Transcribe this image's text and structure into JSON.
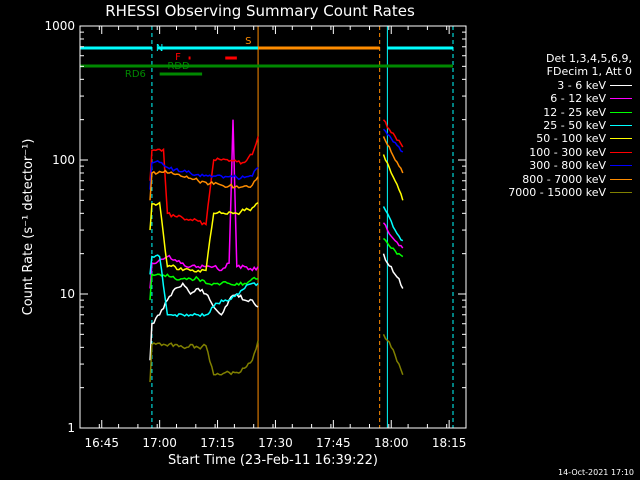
{
  "title": "RHESSI Observing Summary Count Rates",
  "footer_date": "14-Oct-2021 17:10",
  "legend": {
    "header_line1": "Det 1,3,4,5,6,9,",
    "header_line2": "FDecim 1, Att 0"
  },
  "flags": {
    "N": "N",
    "S": "S",
    "F": "F",
    "RDD": "RDD",
    "RD6": "RD6"
  },
  "chart_data": {
    "type": "line",
    "title": "RHESSI Observing Summary Count Rates",
    "xlabel": "Start Time (23-Feb-11 16:39:22)",
    "ylabel": "Count Rate (s⁻¹ detector⁻¹)",
    "yscale": "log",
    "ylim": [
      1,
      1000
    ],
    "xlim_minutes_after_start": [
      0,
      100
    ],
    "x_ticks": [
      "16:45",
      "17:00",
      "17:15",
      "17:30",
      "17:45",
      "18:00",
      "18:15"
    ],
    "y_ticks": [
      "1",
      "10",
      "100",
      "1000"
    ],
    "legend_position": "right",
    "series": [
      {
        "name": "3 - 6 keV",
        "color": "#ffffff",
        "segments": [
          {
            "x": [
              "16:57:30",
              "16:58:00",
              "17:00:00",
              "17:02:00",
              "17:04:00",
              "17:06:00",
              "17:08:00",
              "17:10:00",
              "17:12:00",
              "17:14:00",
              "17:16:00",
              "17:18:00",
              "17:20:00",
              "17:22:00",
              "17:24:00",
              "17:25:30"
            ],
            "y": [
              3.2,
              6,
              7,
              9,
              11,
              12,
              10,
              11,
              10,
              8,
              7,
              9,
              10,
              9,
              9,
              8
            ]
          },
          {
            "x": [
              "17:58:00",
              "17:59:00",
              "18:00:00",
              "18:01:00",
              "18:02:00",
              "18:03:00"
            ],
            "y": [
              20,
              17,
              16,
              14,
              13,
              11
            ]
          }
        ]
      },
      {
        "name": "6 - 12 keV",
        "color": "#ff00ff",
        "segments": [
          {
            "x": [
              "16:57:30",
              "16:58:00",
              "17:00:00",
              "17:02:00",
              "17:04:00",
              "17:06:00",
              "17:08:00",
              "17:10:00",
              "17:12:00",
              "17:14:00",
              "17:16:00",
              "17:18:00",
              "17:19:00",
              "17:20:00",
              "17:22:00",
              "17:24:00",
              "17:25:30"
            ],
            "y": [
              11,
              17,
              18,
              19,
              18,
              17,
              16,
              16,
              16,
              16,
              15,
              17,
              200,
              16,
              16,
              15,
              16
            ]
          },
          {
            "x": [
              "17:58:00",
              "17:59:00",
              "18:00:00",
              "18:01:00",
              "18:02:00",
              "18:03:00"
            ],
            "y": [
              34,
              30,
              27,
              25,
              23,
              22
            ]
          }
        ]
      },
      {
        "name": "12 - 25 keV",
        "color": "#00ff00",
        "segments": [
          {
            "x": [
              "16:57:30",
              "16:58:00",
              "17:00:00",
              "17:02:00",
              "17:04:00",
              "17:06:00",
              "17:08:00",
              "17:10:00",
              "17:12:00",
              "17:14:00",
              "17:16:00",
              "17:18:00",
              "17:20:00",
              "17:22:00",
              "17:24:00",
              "17:25:30"
            ],
            "y": [
              9,
              14,
              14,
              14,
              13,
              13,
              13,
              13,
              12,
              12,
              12,
              12,
              12,
              12,
              13,
              13
            ]
          },
          {
            "x": [
              "17:58:00",
              "17:59:00",
              "18:00:00",
              "18:01:00",
              "18:02:00",
              "18:03:00"
            ],
            "y": [
              26,
              24,
              22,
              21,
              20,
              19
            ]
          }
        ]
      },
      {
        "name": "25 - 50 keV",
        "color": "#00ffff",
        "segments": [
          {
            "x": [
              "16:57:30",
              "16:58:00",
              "17:00:00",
              "17:02:00",
              "17:04:00",
              "17:06:00",
              "17:08:00",
              "17:10:00",
              "17:12:00",
              "17:14:00",
              "17:16:00",
              "17:18:00",
              "17:20:00",
              "17:22:00",
              "17:24:00",
              "17:25:30"
            ],
            "y": [
              14,
              19,
              19,
              7,
              7,
              7,
              7,
              7,
              7,
              8,
              9,
              9,
              10,
              11,
              12,
              12
            ]
          },
          {
            "x": [
              "17:58:00",
              "17:59:00",
              "18:00:00",
              "18:01:00",
              "18:02:00",
              "18:03:00"
            ],
            "y": [
              45,
              40,
              35,
              30,
              27,
              25
            ]
          }
        ]
      },
      {
        "name": "50 - 100 keV",
        "color": "#ffff00",
        "segments": [
          {
            "x": [
              "16:57:30",
              "16:58:00",
              "17:00:00",
              "17:02:00",
              "17:04:00",
              "17:06:00",
              "17:08:00",
              "17:10:00",
              "17:12:00",
              "17:14:00",
              "17:16:00",
              "17:18:00",
              "17:20:00",
              "17:22:00",
              "17:24:00",
              "17:25:30"
            ],
            "y": [
              30,
              47,
              48,
              16,
              16,
              15,
              15,
              15,
              15,
              40,
              40,
              41,
              40,
              42,
              44,
              48
            ]
          },
          {
            "x": [
              "17:58:00",
              "17:59:00",
              "18:00:00",
              "18:01:00",
              "18:02:00",
              "18:03:00"
            ],
            "y": [
              110,
              95,
              80,
              70,
              60,
              50
            ]
          }
        ]
      },
      {
        "name": "100 - 300 keV",
        "color": "#ff0000",
        "segments": [
          {
            "x": [
              "16:57:30",
              "16:58:00",
              "17:00:00",
              "17:01:00",
              "17:02:00",
              "17:04:00",
              "17:06:00",
              "17:08:00",
              "17:10:00",
              "17:12:00",
              "17:14:00",
              "17:16:00",
              "17:18:00",
              "17:20:00",
              "17:22:00",
              "17:24:00",
              "17:25:30"
            ],
            "y": [
              70,
              118,
              120,
              120,
              40,
              38,
              37,
              36,
              35,
              33,
              100,
              100,
              98,
              97,
              96,
              110,
              150
            ]
          },
          {
            "x": [
              "17:58:00",
              "17:59:00",
              "18:00:00",
              "18:01:00",
              "18:02:00",
              "18:03:00"
            ],
            "y": [
              200,
              175,
              160,
              150,
              140,
              125
            ]
          }
        ]
      },
      {
        "name": "300 - 800 keV",
        "color": "#0000ff",
        "segments": [
          {
            "x": [
              "16:57:30",
              "16:58:00",
              "17:00:00",
              "17:02:00",
              "17:04:00",
              "17:06:00",
              "17:08:00",
              "17:10:00",
              "17:12:00",
              "17:14:00",
              "17:16:00",
              "17:18:00",
              "17:20:00",
              "17:22:00",
              "17:24:00",
              "17:25:30"
            ],
            "y": [
              60,
              95,
              96,
              88,
              85,
              82,
              80,
              78,
              77,
              76,
              76,
              75,
              74,
              74,
              76,
              88
            ]
          },
          {
            "x": [
              "17:58:00",
              "17:59:00",
              "18:00:00",
              "18:01:00",
              "18:02:00",
              "18:03:00"
            ],
            "y": [
              170,
              155,
              145,
              135,
              125,
              115
            ]
          }
        ]
      },
      {
        "name": "800 - 7000 keV",
        "color": "#ff8c00",
        "segments": [
          {
            "x": [
              "16:57:30",
              "16:58:00",
              "17:00:00",
              "17:02:00",
              "17:04:00",
              "17:06:00",
              "17:08:00",
              "17:10:00",
              "17:12:00",
              "17:14:00",
              "17:16:00",
              "17:18:00",
              "17:20:00",
              "17:22:00",
              "17:24:00",
              "17:25:30"
            ],
            "y": [
              50,
              80,
              82,
              80,
              78,
              75,
              73,
              70,
              68,
              66,
              65,
              64,
              64,
              64,
              65,
              75
            ]
          },
          {
            "x": [
              "17:58:00",
              "17:59:00",
              "18:00:00",
              "18:01:00",
              "18:02:00",
              "18:03:00"
            ],
            "y": [
              150,
              130,
              115,
              100,
              90,
              80
            ]
          }
        ]
      },
      {
        "name": "7000 - 15000 keV",
        "color": "#808000",
        "segments": [
          {
            "x": [
              "16:57:30",
              "16:58:00",
              "17:00:00",
              "17:02:00",
              "17:04:00",
              "17:06:00",
              "17:08:00",
              "17:10:00",
              "17:12:00",
              "17:14:00",
              "17:16:00",
              "17:18:00",
              "17:20:00",
              "17:22:00",
              "17:24:00",
              "17:25:30"
            ],
            "y": [
              2.2,
              4.2,
              4.3,
              4.1,
              4.2,
              4.0,
              4.2,
              4.0,
              4.1,
              2.5,
              2.5,
              2.6,
              2.6,
              2.8,
              3.2,
              4.5
            ]
          },
          {
            "x": [
              "17:58:00",
              "17:59:00",
              "18:00:00",
              "18:01:00",
              "18:02:00",
              "18:03:00"
            ],
            "y": [
              5,
              4.5,
              4,
              3.5,
              3,
              2.5
            ]
          }
        ]
      }
    ],
    "flag_intervals": [
      {
        "name": "N",
        "color": "#00ffff",
        "level": "top",
        "ranges": [
          [
            "16:39:22",
            "16:58:00"
          ],
          [
            "16:59:30",
            "17:25:30"
          ],
          [
            "17:59:00",
            "18:16:00"
          ]
        ]
      },
      {
        "name": "S",
        "color": "#ff8c00",
        "level": "top",
        "ranges": [
          [
            "17:25:30",
            "17:57:00"
          ]
        ]
      },
      {
        "name": "F",
        "color": "#ff0000",
        "level": "upper",
        "ranges": [
          [
            "17:07:30",
            "17:08:00"
          ],
          [
            "17:17:00",
            "17:20:00"
          ]
        ]
      },
      {
        "name": "RDD",
        "color": "#008800",
        "level": "middle",
        "ranges": [
          [
            "16:39:22",
            "18:16:00"
          ]
        ]
      },
      {
        "name": "RD6",
        "color": "#008800",
        "level": "lower",
        "ranges": [
          [
            "17:00:00",
            "17:11:00"
          ]
        ]
      }
    ],
    "vertical_lines": [
      {
        "time": "16:39:22",
        "color": "#00ffff",
        "style": "solid"
      },
      {
        "time": "16:58:00",
        "color": "#00ffff",
        "style": "dashed"
      },
      {
        "time": "17:25:30",
        "color": "#ff8c00",
        "style": "solid"
      },
      {
        "time": "17:57:00",
        "color": "#ff8c00",
        "style": "dashed"
      },
      {
        "time": "17:59:00",
        "color": "#00ffff",
        "style": "solid"
      },
      {
        "time": "18:16:00",
        "color": "#00ffff",
        "style": "dashed"
      }
    ]
  }
}
